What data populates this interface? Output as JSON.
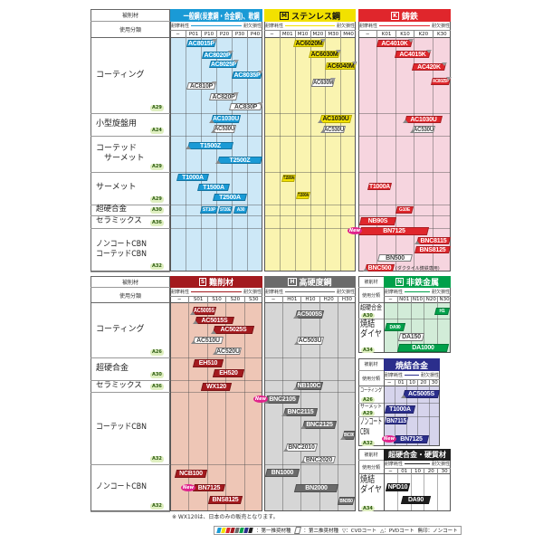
{
  "common": {
    "material_header": "被削材",
    "usage_header": "使用分類",
    "wear_label": "耐摩耗性",
    "tough_label": "耐欠損性"
  },
  "top": {
    "rows": [
      {
        "label": "コーティング",
        "ref": "A29"
      },
      {
        "label": "小型旋盤用",
        "ref": "A24"
      },
      {
        "label": "コーテッド\n　サーメット",
        "ref": "A29"
      },
      {
        "label": "サーメット",
        "ref": "A29"
      },
      {
        "label": "超硬合金",
        "ref": "A30"
      },
      {
        "label": "セラミックス",
        "ref": "A36"
      },
      {
        "label": "ノンコートCBN\nコーテッドCBN",
        "ref": "A32"
      }
    ],
    "materials": [
      {
        "code": "P",
        "title": "一般鋼(炭素鋼・合金鋼)、軟鋼",
        "color": "#1a9ad6",
        "bg": "#cde8f7",
        "text_color": "#ffffff",
        "cols": [
          "−",
          "P01",
          "P10",
          "P20",
          "P30",
          "P40"
        ],
        "badges": [
          {
            "text": "AC8015P",
            "kind": "first",
            "coat": "cvd"
          },
          {
            "text": "AC8020P",
            "kind": "first",
            "coat": "cvd"
          },
          {
            "text": "AC8025P",
            "kind": "first",
            "coat": "cvd"
          },
          {
            "text": "AC8035P",
            "kind": "first",
            "coat": "cvd"
          },
          {
            "text": "AC810P",
            "kind": "second",
            "coat": "cvd"
          },
          {
            "text": "AC820P",
            "kind": "second",
            "coat": "cvd"
          },
          {
            "text": "AC830P",
            "kind": "second",
            "coat": "cvd"
          },
          {
            "text": "AC1030U",
            "kind": "first",
            "coat": "pvd"
          },
          {
            "text": "AC530U",
            "kind": "second",
            "coat": "pvd"
          },
          {
            "text": "T1500Z",
            "kind": "first",
            "coat": "pvd"
          },
          {
            "text": "T2500Z",
            "kind": "first",
            "coat": "pvd"
          },
          {
            "text": "T1000A",
            "kind": "first",
            "coat": "none"
          },
          {
            "text": "T1500A",
            "kind": "first",
            "coat": "none"
          },
          {
            "text": "T2500A",
            "kind": "first",
            "coat": "none"
          },
          {
            "text": "ST10P",
            "kind": "first",
            "coat": "none"
          },
          {
            "text": "ST20E",
            "kind": "first",
            "coat": "none"
          },
          {
            "text": "A30",
            "kind": "first",
            "coat": "none"
          }
        ]
      },
      {
        "code": "M",
        "title": "ステンレス鋼",
        "color": "#f2e100",
        "bg": "#faf4b0",
        "text_color": "#111111",
        "cols": [
          "−",
          "M01",
          "M10",
          "M20",
          "M30",
          "M40"
        ],
        "badges": [
          {
            "text": "AC6020M",
            "kind": "first",
            "coat": "cvd"
          },
          {
            "text": "AC6030M",
            "kind": "first",
            "coat": "cvd"
          },
          {
            "text": "AC6040M",
            "kind": "first",
            "coat": "cvd"
          },
          {
            "text": "AC630M",
            "kind": "second",
            "coat": "cvd"
          },
          {
            "text": "AC1030U",
            "kind": "first",
            "coat": "pvd"
          },
          {
            "text": "AC530U",
            "kind": "second",
            "coat": "pvd"
          },
          {
            "text": "T1500A",
            "kind": "first",
            "coat": "none"
          },
          {
            "text": "T1500A",
            "kind": "first",
            "coat": "none"
          }
        ]
      },
      {
        "code": "K",
        "title": "鋳鉄",
        "color": "#e0262c",
        "bg": "#f6d5df",
        "text_color": "#ffffff",
        "cols": [
          "−",
          "K01",
          "K10",
          "K20",
          "K30"
        ],
        "badges": [
          {
            "text": "AC4010K",
            "kind": "first",
            "coat": "cvd"
          },
          {
            "text": "AC4015K",
            "kind": "first",
            "coat": "cvd"
          },
          {
            "text": "AC420K",
            "kind": "first",
            "coat": "cvd"
          },
          {
            "text": "AC8025P",
            "kind": "first",
            "coat": "cvd"
          },
          {
            "text": "AC1030U",
            "kind": "first",
            "coat": "pvd"
          },
          {
            "text": "AC530U",
            "kind": "second",
            "coat": "pvd"
          },
          {
            "text": "T1000A",
            "kind": "first",
            "coat": "none"
          },
          {
            "text": "G10E",
            "kind": "first",
            "coat": "none"
          },
          {
            "text": "NB90S",
            "kind": "first",
            "coat": "none"
          },
          {
            "text": "BN7125",
            "kind": "first",
            "coat": "none",
            "new": true
          },
          {
            "text": "BNC8115",
            "kind": "first",
            "coat": "pvd"
          },
          {
            "text": "BNS8125",
            "kind": "first",
            "coat": "none"
          },
          {
            "text": "BN500",
            "kind": "second",
            "coat": "none"
          },
          {
            "text": "BNC500",
            "kind": "first",
            "coat": "pvd"
          }
        ],
        "note": "(ダクタイル鋳鉄専用)"
      }
    ]
  },
  "bottom": {
    "rows": [
      {
        "label": "コーティング",
        "ref": "A26"
      },
      {
        "label": "超硬合金",
        "ref": "A30"
      },
      {
        "label": "セラミックス",
        "ref": "A36"
      },
      {
        "label": "コーテッドCBN",
        "ref": "A32"
      },
      {
        "label": "ノンコートCBN",
        "ref": "A32"
      }
    ],
    "materials": [
      {
        "code": "S",
        "title": "難削材",
        "color": "#a31a1e",
        "bg": "#eec6b6",
        "text_color": "#ffffff",
        "cols": [
          "−",
          "S01",
          "S10",
          "S20",
          "S30"
        ],
        "badges": [
          {
            "text": "AC5005S",
            "kind": "first",
            "coat": "pvd"
          },
          {
            "text": "AC5015S",
            "kind": "first",
            "coat": "pvd"
          },
          {
            "text": "AC5025S",
            "kind": "first",
            "coat": "pvd"
          },
          {
            "text": "AC510U",
            "kind": "second",
            "coat": "pvd"
          },
          {
            "text": "AC520U",
            "kind": "second",
            "coat": "pvd"
          },
          {
            "text": "EH510",
            "kind": "first",
            "coat": "none"
          },
          {
            "text": "EH520",
            "kind": "first",
            "coat": "none"
          },
          {
            "text": "WX120",
            "kind": "first",
            "coat": "none"
          },
          {
            "text": "NCB100",
            "kind": "first",
            "coat": "none"
          },
          {
            "text": "BN7125",
            "kind": "first",
            "coat": "none",
            "new": true
          },
          {
            "text": "BNS8125",
            "kind": "first",
            "coat": "none"
          }
        ]
      },
      {
        "code": "H",
        "title": "高硬度鋼",
        "color": "#6b6b6b",
        "bg": "#d6d6d6",
        "text_color": "#ffffff",
        "cols": [
          "−",
          "H01",
          "H10",
          "H20",
          "H30"
        ],
        "badges": [
          {
            "text": "AC5005S",
            "kind": "first",
            "coat": "pvd"
          },
          {
            "text": "AC503U",
            "kind": "second",
            "coat": "pvd"
          },
          {
            "text": "NB100C",
            "kind": "first",
            "coat": "pvd"
          },
          {
            "text": "BNC2105",
            "kind": "first",
            "coat": "pvd",
            "new": true
          },
          {
            "text": "BNC2115",
            "kind": "first",
            "coat": "pvd"
          },
          {
            "text": "BNC2125",
            "kind": "first",
            "coat": "pvd"
          },
          {
            "text": "BNC300",
            "kind": "first",
            "coat": "pvd"
          },
          {
            "text": "BNC2010",
            "kind": "second",
            "coat": "pvd"
          },
          {
            "text": "BNC2020",
            "kind": "second",
            "coat": "pvd"
          },
          {
            "text": "BN1000",
            "kind": "first",
            "coat": "none"
          },
          {
            "text": "BN2000",
            "kind": "first",
            "coat": "none"
          },
          {
            "text": "BN350",
            "kind": "first",
            "coat": "none"
          }
        ]
      }
    ],
    "boxes": [
      {
        "code": "N",
        "title": "非鉄金属",
        "color": "#00a04a",
        "bg": "#d2ecd8",
        "text_color": "#ffffff",
        "cols": [
          "−",
          "N01",
          "N10",
          "N20",
          "N30"
        ],
        "rows": [
          {
            "label": "超硬合金",
            "ref": "A30"
          },
          {
            "label": "焼結\nダイヤ",
            "ref": "A34"
          }
        ],
        "badges": [
          {
            "text": "H1",
            "kind": "first",
            "coat": "none"
          },
          {
            "text": "DA90",
            "kind": "first",
            "coat": "none"
          },
          {
            "text": "DA150",
            "kind": "second",
            "coat": "none"
          },
          {
            "text": "DA1000",
            "kind": "first",
            "coat": "none"
          }
        ]
      },
      {
        "code": "",
        "title": "焼結合金",
        "color": "#2b2e8c",
        "bg": "#d6d4ec",
        "text_color": "#ffffff",
        "cols": [
          "−",
          "01",
          "10",
          "20",
          "30"
        ],
        "rows": [
          {
            "label": "コーティング",
            "ref": "A26"
          },
          {
            "label": "サーメット",
            "ref": "A29"
          },
          {
            "label": "ノンコート\nCBN",
            "ref": "A32"
          }
        ],
        "badges": [
          {
            "text": "AC5005S",
            "kind": "first",
            "coat": "pvd"
          },
          {
            "text": "T1000A",
            "kind": "first",
            "coat": "none"
          },
          {
            "text": "BN7115",
            "kind": "first",
            "coat": "none"
          },
          {
            "text": "BN7125",
            "kind": "first",
            "coat": "none",
            "new": true
          }
        ]
      },
      {
        "code": "",
        "title": "超硬合金・硬質材",
        "color": "#1e1e1e",
        "bg": "#ffffff",
        "text_color": "#ffffff",
        "cols": [
          "−",
          "01",
          "10",
          "20",
          "30"
        ],
        "rows": [
          {
            "label": "焼結\nダイヤ",
            "ref": "A34"
          }
        ],
        "badges": [
          {
            "text": "NPD10",
            "kind": "first",
            "coat": "none"
          },
          {
            "text": "DA90",
            "kind": "first",
            "coat": "none"
          }
        ]
      }
    ]
  },
  "new_label": "New",
  "footnote": "※ WX120は、日本のみの販売となります。",
  "legend": {
    "first": "：第一推奨材種",
    "second": "：第二推奨材種",
    "cvd": "▽：CVDコート",
    "pvd": "△：PVDコート",
    "none": "無印：ノンコート",
    "swatch_colors": [
      "#1a9ad6",
      "#f2e100",
      "#e0262c",
      "#a31a1e",
      "#6b6b6b",
      "#00a04a",
      "#2b2e8c",
      "#1e1e1e"
    ]
  }
}
